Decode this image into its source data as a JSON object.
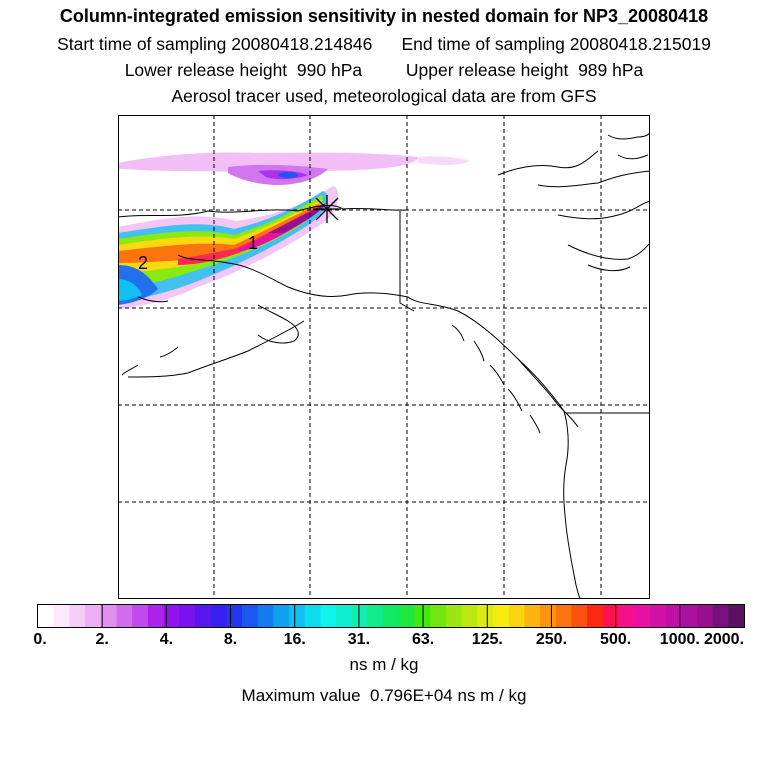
{
  "header": {
    "title": "Column-integrated emission sensitivity in nested domain for NP3_20080418",
    "start_label": "Start time of sampling",
    "start_value": "20080418.214846",
    "end_label": "End time of sampling",
    "end_value": "20080418.215019",
    "lower_label": "Lower release height",
    "lower_value": "990 hPa",
    "upper_label": "Upper release height",
    "upper_value": "989 hPa",
    "tracer_note": "Aerosol tracer used, meteorological data are from GFS"
  },
  "map": {
    "trajectory_labels": [
      "1",
      "2"
    ],
    "release_marker": "release-point-star"
  },
  "colorbar": {
    "ticks": [
      "0.",
      "2.",
      "4.",
      "8.",
      "16.",
      "31.",
      "63.",
      "125.",
      "250.",
      "500.",
      "1000.",
      "2000."
    ],
    "colors": [
      "#ffffff",
      "#fde8fd",
      "#f6cdf8",
      "#eeb0f4",
      "#e18ff0",
      "#d26cee",
      "#c14aee",
      "#ad22ee",
      "#9212ee",
      "#7a10ee",
      "#5a14ee",
      "#3a20ee",
      "#2436ee",
      "#1a58ee",
      "#127cf0",
      "#10a0f0",
      "#10c0f2",
      "#10dcf0",
      "#10f4ec",
      "#10f0d0",
      "#10eeb0",
      "#10ec8c",
      "#10ea64",
      "#20e840",
      "#40e810",
      "#70e810",
      "#98e810",
      "#bce810",
      "#dcec10",
      "#f4ec10",
      "#fcd410",
      "#fcb410",
      "#fc9410",
      "#fc7410",
      "#fc5010",
      "#fc2810",
      "#fc1050",
      "#f4108c",
      "#e810a4",
      "#d410a8",
      "#c010a8",
      "#ac10a0",
      "#981090",
      "#7a1080",
      "#5c1060"
    ],
    "units": "ns m / kg",
    "max_label": "Maximum value",
    "max_value": "0.796E+04 ns m / kg"
  }
}
